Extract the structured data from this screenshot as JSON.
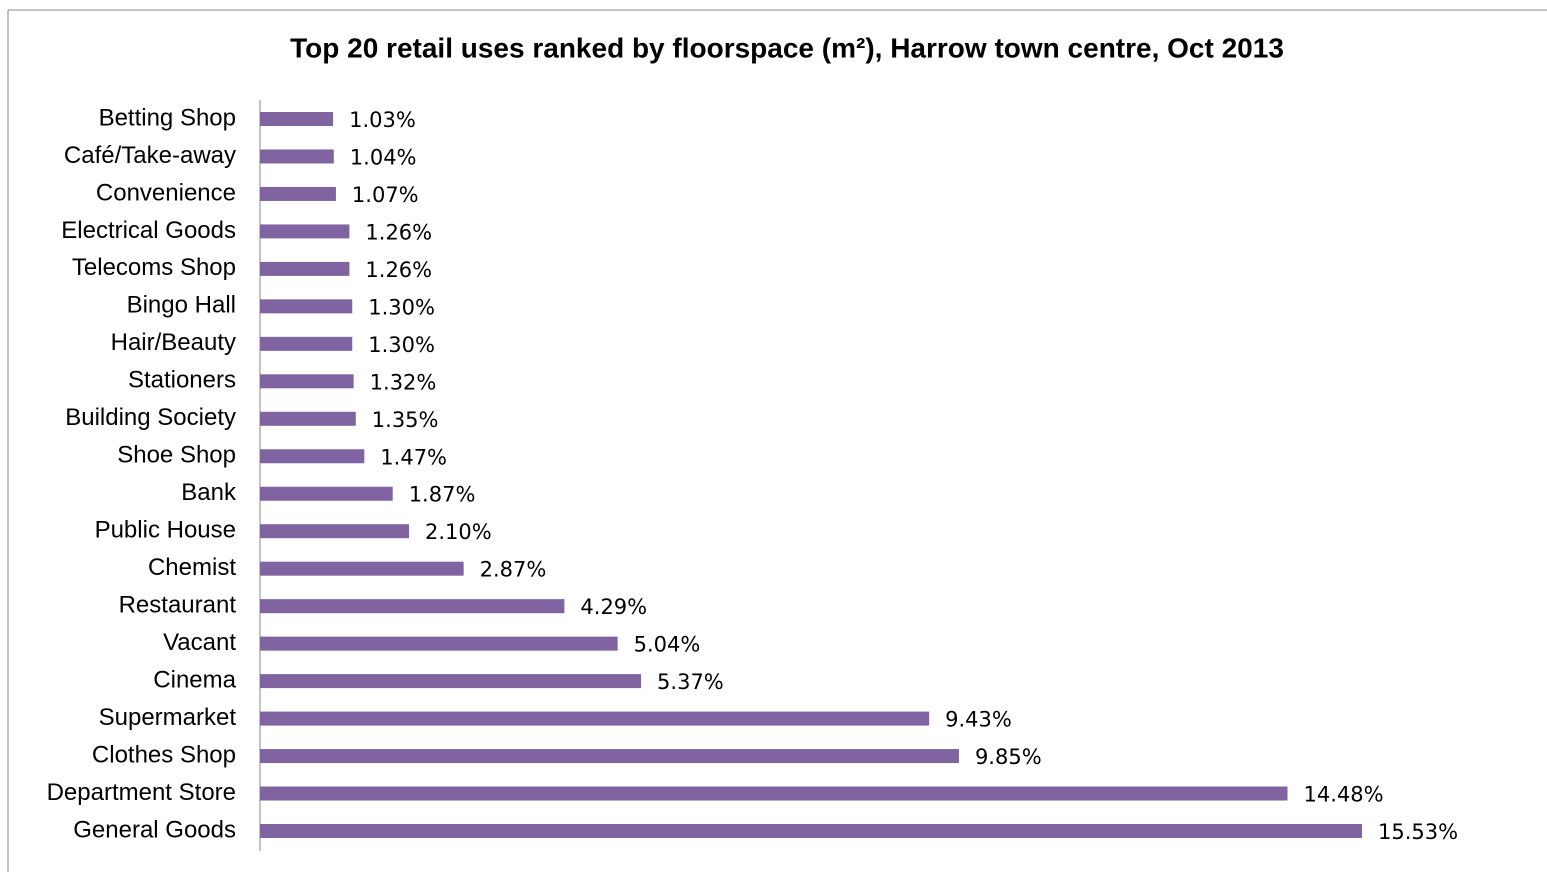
{
  "chart_data": {
    "type": "bar",
    "orientation": "horizontal",
    "title": "Top 20 retail uses ranked by floorspace (m²), Harrow town centre, Oct 2013",
    "categories": [
      "Betting Shop",
      "Café/Take-away",
      "Convenience",
      "Electrical Goods",
      "Telecoms Shop",
      "Bingo Hall",
      "Hair/Beauty",
      "Stationers",
      "Building Society",
      "Shoe Shop",
      "Bank",
      "Public House",
      "Chemist",
      "Restaurant",
      "Vacant",
      "Cinema",
      "Supermarket",
      "Clothes Shop",
      "Department Store",
      "General Goods"
    ],
    "values": [
      1.03,
      1.04,
      1.07,
      1.26,
      1.26,
      1.3,
      1.3,
      1.32,
      1.35,
      1.47,
      1.87,
      2.1,
      2.87,
      4.29,
      5.04,
      5.37,
      9.43,
      9.85,
      14.48,
      15.53
    ],
    "value_labels": [
      "1.03%",
      "1.04%",
      "1.07%",
      "1.26%",
      "1.26%",
      "1.30%",
      "1.30%",
      "1.32%",
      "1.35%",
      "1.47%",
      "1.87%",
      "2.10%",
      "2.87%",
      "4.29%",
      "5.04%",
      "5.37%",
      "9.43%",
      "9.85%",
      "14.48%",
      "15.53%"
    ],
    "color": "#8064a2"
  }
}
